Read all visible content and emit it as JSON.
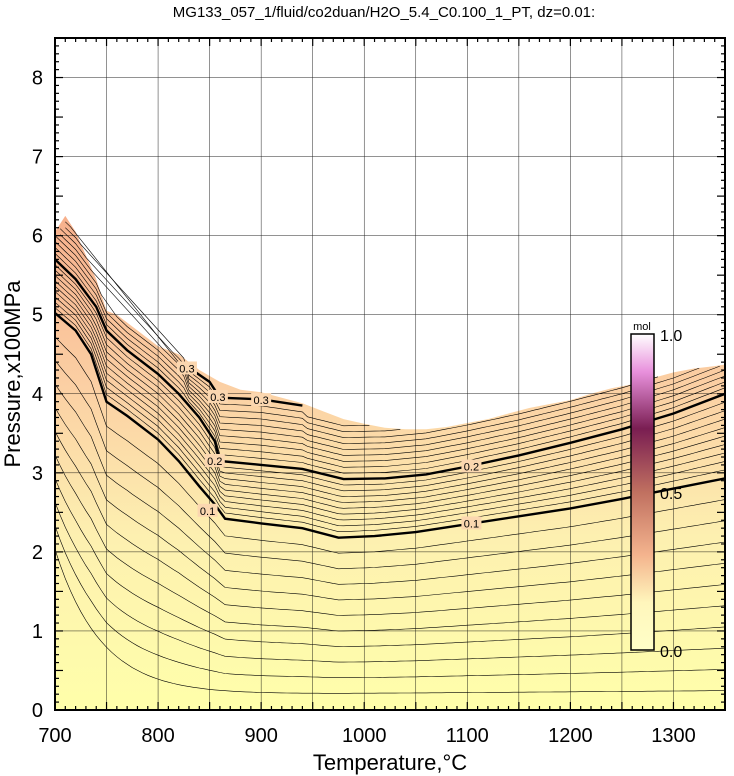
{
  "chart_data": {
    "type": "contour",
    "title": "MG133_057_1/fluid/co2duan/H2O_5.4_C0.100_1_PT, dz=0.01:",
    "xlabel": "Temperature,°C",
    "ylabel": "Pressure,x100MPa",
    "xlim": [
      700,
      1350
    ],
    "ylim": [
      0,
      8.5
    ],
    "xticks": [
      700,
      800,
      900,
      1000,
      1100,
      1200,
      1300
    ],
    "yticks": [
      0,
      1,
      2,
      3,
      4,
      5,
      6,
      7,
      8
    ],
    "grid": true,
    "contour_interval": 0.01,
    "domain_upper_boundary": [
      [
        700,
        6.05
      ],
      [
        710,
        6.25
      ],
      [
        720,
        6.05
      ],
      [
        730,
        5.75
      ],
      [
        740,
        5.45
      ],
      [
        750,
        5.05
      ],
      [
        760,
        5.0
      ],
      [
        780,
        4.8
      ],
      [
        800,
        4.6
      ],
      [
        820,
        4.5
      ],
      [
        840,
        4.3
      ],
      [
        860,
        4.15
      ],
      [
        880,
        4.05
      ],
      [
        900,
        4.02
      ],
      [
        920,
        3.95
      ],
      [
        940,
        3.88
      ],
      [
        960,
        3.78
      ],
      [
        980,
        3.68
      ],
      [
        1000,
        3.62
      ],
      [
        1020,
        3.57
      ],
      [
        1040,
        3.55
      ],
      [
        1060,
        3.55
      ],
      [
        1080,
        3.58
      ],
      [
        1100,
        3.63
      ],
      [
        1120,
        3.68
      ],
      [
        1140,
        3.75
      ],
      [
        1160,
        3.82
      ],
      [
        1180,
        3.87
      ],
      [
        1200,
        3.92
      ],
      [
        1220,
        4.0
      ],
      [
        1240,
        4.07
      ],
      [
        1260,
        4.12
      ],
      [
        1280,
        4.2
      ],
      [
        1300,
        4.27
      ],
      [
        1320,
        4.32
      ],
      [
        1340,
        4.35
      ],
      [
        1350,
        4.37
      ]
    ],
    "labeled_contours": [
      {
        "level": "0.1",
        "points": [
          [
            700,
            5.02
          ],
          [
            720,
            4.8
          ],
          [
            735,
            4.5
          ],
          [
            750,
            3.9
          ],
          [
            770,
            3.72
          ],
          [
            800,
            3.42
          ],
          [
            820,
            3.15
          ],
          [
            840,
            2.83
          ],
          [
            855,
            2.6
          ],
          [
            865,
            2.42
          ],
          [
            900,
            2.36
          ],
          [
            940,
            2.3
          ],
          [
            975,
            2.18
          ],
          [
            1010,
            2.2
          ],
          [
            1050,
            2.25
          ],
          [
            1100,
            2.35
          ],
          [
            1150,
            2.45
          ],
          [
            1200,
            2.55
          ],
          [
            1250,
            2.67
          ],
          [
            1300,
            2.8
          ],
          [
            1350,
            2.93
          ]
        ],
        "labels": [
          {
            "x": 848,
            "y": 2.52,
            "text": "0.1"
          },
          {
            "x": 1104,
            "y": 2.36,
            "text": "0.1"
          }
        ]
      },
      {
        "level": "0.2",
        "points": [
          [
            700,
            5.7
          ],
          [
            720,
            5.45
          ],
          [
            740,
            5.1
          ],
          [
            750,
            4.8
          ],
          [
            770,
            4.55
          ],
          [
            800,
            4.25
          ],
          [
            820,
            4.0
          ],
          [
            840,
            3.7
          ],
          [
            855,
            3.4
          ],
          [
            860,
            3.15
          ],
          [
            900,
            3.1
          ],
          [
            940,
            3.05
          ],
          [
            980,
            2.92
          ],
          [
            1020,
            2.93
          ],
          [
            1060,
            2.98
          ],
          [
            1100,
            3.08
          ],
          [
            1150,
            3.22
          ],
          [
            1200,
            3.38
          ],
          [
            1250,
            3.55
          ],
          [
            1300,
            3.75
          ],
          [
            1350,
            4.0
          ]
        ],
        "labels": [
          {
            "x": 855,
            "y": 3.15,
            "text": "0.2"
          },
          {
            "x": 1104,
            "y": 3.08,
            "text": "0.2"
          }
        ]
      },
      {
        "level": "0.3",
        "points": [
          [
            830,
            4.33
          ],
          [
            850,
            4.15
          ],
          [
            860,
            3.95
          ],
          [
            900,
            3.93
          ],
          [
            940,
            3.85
          ]
        ],
        "labels": [
          {
            "x": 828,
            "y": 4.32,
            "text": "0.3"
          },
          {
            "x": 858,
            "y": 3.96,
            "text": "0.3"
          },
          {
            "x": 900,
            "y": 3.92,
            "text": "0.3"
          }
        ]
      }
    ],
    "colorbar": {
      "unit": "mol",
      "min": 0.0,
      "max": 1.0,
      "tick_labels": [
        "1.0",
        "0.5",
        "0.0"
      ],
      "tick_values": [
        1.0,
        0.5,
        0.0
      ],
      "colors": [
        "#ffffff",
        "#e06cd0",
        "#781c50",
        "#c0685a",
        "#f4b48e",
        "#fff8b4",
        "#ffffaa"
      ]
    }
  }
}
